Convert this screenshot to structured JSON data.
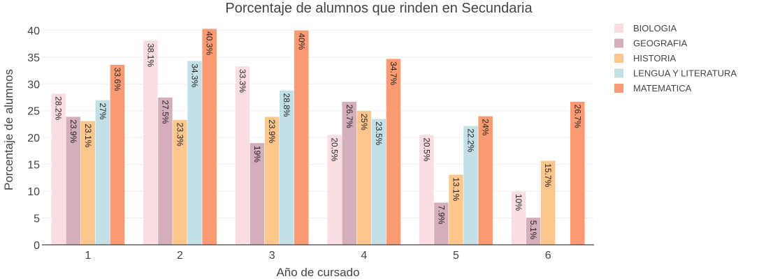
{
  "chart_data": {
    "type": "bar",
    "title": "Porcentaje de alumnos que rinden en Secundaria",
    "xlabel": "Año de cursado",
    "ylabel": "Porcentaje de alumnos",
    "categories": [
      "1",
      "2",
      "3",
      "4",
      "5",
      "6"
    ],
    "ylim": [
      0,
      42
    ],
    "yticks": [
      0,
      5,
      10,
      15,
      20,
      25,
      30,
      35,
      40
    ],
    "grid": true,
    "legend_position": "right",
    "series": [
      {
        "name": "BIOLOGIA",
        "color": "#fadde1",
        "values": [
          28.2,
          38.1,
          33.3,
          20.5,
          20.5,
          10
        ],
        "labels": [
          "28.2%",
          "38.1%",
          "33.3%",
          "20.5%",
          "20.5%",
          "10%"
        ]
      },
      {
        "name": "GEOGRAFIA",
        "color": "#d4afb9",
        "values": [
          23.9,
          27.5,
          19,
          26.7,
          7.9,
          5.1
        ],
        "labels": [
          "23.9%",
          "27.5%",
          "19%",
          "26.7%",
          "7.9%",
          "5.1%"
        ]
      },
      {
        "name": "HISTORIA",
        "color": "#fdc68d",
        "values": [
          23.1,
          23.3,
          23.9,
          25,
          13.1,
          15.7
        ],
        "labels": [
          "23.1%",
          "23.3%",
          "23.9%",
          "25%",
          "13.1%",
          "15.7%"
        ]
      },
      {
        "name": "LENGUA Y LITERATURA",
        "color": "#c2e0e6",
        "values": [
          27,
          34.3,
          28.8,
          23.5,
          22.2,
          null
        ],
        "labels": [
          "27%",
          "34.3%",
          "28.8%",
          "23.5%",
          "22.2%",
          null
        ]
      },
      {
        "name": "MATEMATICA",
        "color": "#fc9b73",
        "values": [
          33.6,
          40.3,
          40,
          34.7,
          24,
          26.7
        ],
        "labels": [
          "33.6%",
          "40.3%",
          "40%",
          "34.7%",
          "24%",
          "26.7%"
        ]
      }
    ]
  }
}
